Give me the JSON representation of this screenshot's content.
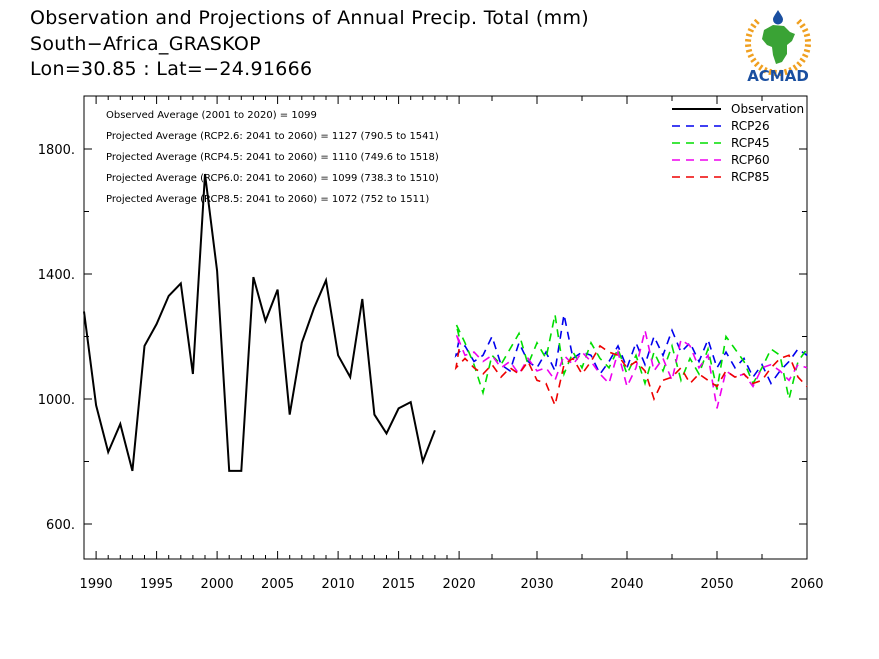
{
  "header": {
    "title": "Observation and Projections of Annual Precip. Total (mm)",
    "location": "South−Africa_GRASKOP",
    "coords": "Lon=30.85 : Lat=−24.91666"
  },
  "logo": {
    "text": "ACMAD",
    "icon": "africa-map-logo",
    "accent": "#1a4fa0",
    "map_color": "#3aa335",
    "ray_color": "#f0a020"
  },
  "stats": [
    "Observed Average (2001 to 2020) = 1099",
    "Projected Average (RCP2.6: 2041 to 2060) = 1127 (790.5 to 1541)",
    "Projected Average (RCP4.5: 2041 to 2060) = 1110 (749.6 to 1518)",
    "Projected Average (RCP6.0: 2041 to 2060) = 1099 (738.3 to 1510)",
    "Projected Average (RCP8.5: 2041 to 2060) = 1072 (752 to 1511)"
  ],
  "chart_data": {
    "type": "line",
    "xlim": [
      1989,
      2060
    ],
    "ylim": [
      490,
      1980
    ],
    "yticks": [
      600,
      1000,
      1400,
      1800
    ],
    "ytick_labels": [
      "600.",
      "1000.",
      "1400.",
      "1800."
    ],
    "xticks": [
      1990,
      1995,
      2000,
      2005,
      2010,
      2015,
      2020,
      2030,
      2040,
      2050,
      2060
    ],
    "xtick_labels": [
      "1990",
      "1995",
      "2000",
      "2005",
      "2010",
      "2015",
      "2020",
      "2030",
      "2040",
      "2050",
      "2060"
    ],
    "legend_position": "top-right",
    "series": [
      {
        "name": "Observation",
        "color": "#000000",
        "dash": "solid",
        "x": [
          1989,
          1990,
          1991,
          1992,
          1993,
          1994,
          1995,
          1996,
          1997,
          1998,
          1999,
          2000,
          2001,
          2002,
          2003,
          2004,
          2005,
          2006,
          2007,
          2008,
          2009,
          2010,
          2011,
          2012,
          2013,
          2014,
          2015,
          2016,
          2017,
          2018,
          2019
        ],
        "values": [
          1280,
          980,
          830,
          920,
          770,
          1170,
          1240,
          1330,
          1370,
          1080,
          1720,
          1410,
          770,
          770,
          1390,
          1250,
          1350,
          950,
          1180,
          1290,
          1380,
          1140,
          1070,
          1320,
          950,
          890,
          970,
          990,
          800,
          900,
          null
        ]
      },
      {
        "name": "RCP26",
        "color": "#0000ee",
        "dash": "8,6",
        "x": [
          2020,
          2021,
          2022,
          2023,
          2024,
          2025,
          2026,
          2027,
          2028,
          2029,
          2030,
          2031,
          2032,
          2033,
          2034,
          2035,
          2036,
          2037,
          2038,
          2039,
          2040,
          2041,
          2042,
          2043,
          2044,
          2045,
          2046,
          2047,
          2048,
          2049,
          2050,
          2051,
          2052,
          2053,
          2054,
          2055,
          2056,
          2057,
          2058,
          2059,
          2060
        ],
        "values": [
          1190,
          1140,
          1170,
          1120,
          1140,
          1200,
          1110,
          1090,
          1180,
          1120,
          1100,
          1150,
          1090,
          1270,
          1130,
          1150,
          1140,
          1080,
          1120,
          1170,
          1100,
          1180,
          1110,
          1200,
          1140,
          1220,
          1150,
          1180,
          1120,
          1190,
          1100,
          1150,
          1100,
          1130,
          1070,
          1110,
          1050,
          1090,
          1120,
          1160,
          1140
        ]
      },
      {
        "name": "RCP45",
        "color": "#00dd00",
        "dash": "8,6",
        "x": [
          2020,
          2021,
          2022,
          2023,
          2024,
          2025,
          2026,
          2027,
          2028,
          2029,
          2030,
          2031,
          2032,
          2033,
          2034,
          2035,
          2036,
          2037,
          2038,
          2039,
          2040,
          2041,
          2042,
          2043,
          2044,
          2045,
          2046,
          2047,
          2048,
          2049,
          2050,
          2051,
          2052,
          2053,
          2054,
          2055,
          2056,
          2057,
          2058,
          2059,
          2060
        ],
        "values": [
          1200,
          1240,
          1180,
          1110,
          1020,
          1140,
          1110,
          1160,
          1210,
          1110,
          1180,
          1130,
          1270,
          1080,
          1150,
          1100,
          1180,
          1130,
          1100,
          1160,
          1080,
          1140,
          1050,
          1150,
          1090,
          1170,
          1060,
          1130,
          1080,
          1160,
          1030,
          1200,
          1160,
          1120,
          1050,
          1100,
          1160,
          1140,
          1000,
          1120,
          1160
        ]
      },
      {
        "name": "RCP60",
        "color": "#ee00ee",
        "dash": "8,6",
        "x": [
          2020,
          2021,
          2022,
          2023,
          2024,
          2025,
          2026,
          2027,
          2028,
          2029,
          2030,
          2031,
          2032,
          2033,
          2034,
          2035,
          2036,
          2037,
          2038,
          2039,
          2040,
          2041,
          2042,
          2043,
          2044,
          2045,
          2046,
          2047,
          2048,
          2049,
          2050,
          2051,
          2052,
          2053,
          2054,
          2055,
          2056,
          2057,
          2058,
          2059,
          2060
        ],
        "values": [
          1180,
          1210,
          1140,
          1150,
          1120,
          1140,
          1100,
          1120,
          1080,
          1130,
          1090,
          1100,
          1060,
          1140,
          1110,
          1150,
          1120,
          1080,
          1050,
          1150,
          1040,
          1100,
          1220,
          1090,
          1130,
          1060,
          1190,
          1170,
          1100,
          1140,
          970,
          1090,
          1070,
          1080,
          1040,
          1100,
          1110,
          1090,
          1060,
          1110,
          1100
        ]
      },
      {
        "name": "RCP85",
        "color": "#ee0000",
        "dash": "8,6",
        "x": [
          2020,
          2021,
          2022,
          2023,
          2024,
          2025,
          2026,
          2027,
          2028,
          2029,
          2030,
          2031,
          2032,
          2033,
          2034,
          2035,
          2036,
          2037,
          2038,
          2039,
          2040,
          2041,
          2042,
          2043,
          2044,
          2045,
          2046,
          2047,
          2048,
          2049,
          2050,
          2051,
          2052,
          2053,
          2054,
          2055,
          2056,
          2057,
          2058,
          2059,
          2060
        ],
        "values": [
          1160,
          1100,
          1130,
          1100,
          1080,
          1110,
          1070,
          1100,
          1080,
          1120,
          1060,
          1050,
          980,
          1110,
          1130,
          1080,
          1120,
          1170,
          1150,
          1140,
          1100,
          1120,
          1090,
          1000,
          1060,
          1070,
          1100,
          1050,
          1080,
          1060,
          1040,
          1090,
          1070,
          1080,
          1050,
          1060,
          1100,
          1130,
          1140,
          1070,
          1040
        ]
      }
    ]
  }
}
